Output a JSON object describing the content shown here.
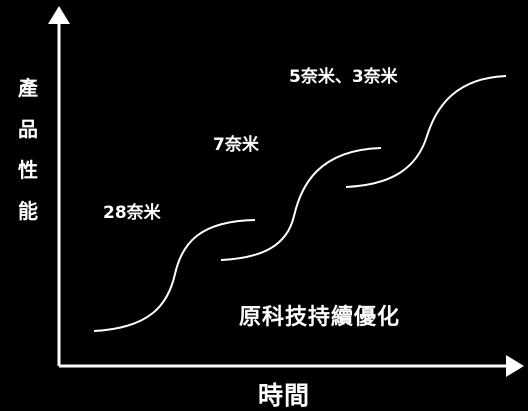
{
  "axes": {
    "y_label": "產品性能",
    "x_label": "時間"
  },
  "nodes": [
    {
      "label": "28奈米"
    },
    {
      "label": "7奈米"
    },
    {
      "label": "5奈米、3奈米"
    }
  ],
  "note": "原科技持續優化",
  "colors": {
    "background": "#000000",
    "foreground": "#ffffff"
  }
}
